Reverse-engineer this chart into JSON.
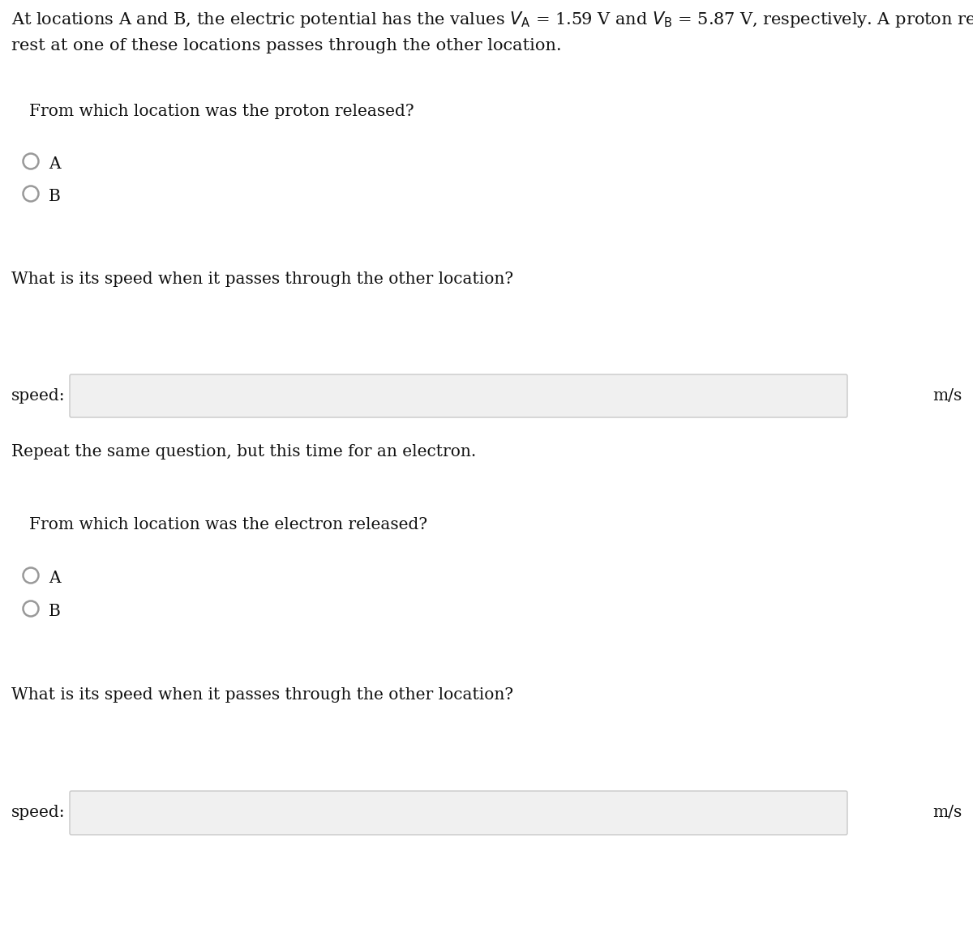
{
  "background_color": "#ffffff",
  "line1": "At locations A and B, the electric potential has the values $V_{\\mathrm{A}}$ = 1.59 V and $V_{\\mathrm{B}}$ = 5.87 V, respectively. A proton released from",
  "line2": "rest at one of these locations passes through the other location.",
  "proton_question": "From which location was the proton released?",
  "speed_question": "What is its speed when it passes through the other location?",
  "repeat_label": "Repeat the same question, but this time for an electron.",
  "electron_question": "From which location was the electron released?",
  "speed_label": "speed:",
  "units": "m/s",
  "radio_A": "A",
  "radio_B": "B",
  "input_box_facecolor": "#f0f0f0",
  "input_box_edgecolor": "#c8c8c8",
  "font_size_main": 15.0,
  "font_size_body": 14.5,
  "radio_circle_color": "#999999",
  "radio_circle_linewidth": 1.8,
  "text_color": "#111111",
  "fig_width": 12.0,
  "fig_height": 11.5,
  "dpi": 100
}
